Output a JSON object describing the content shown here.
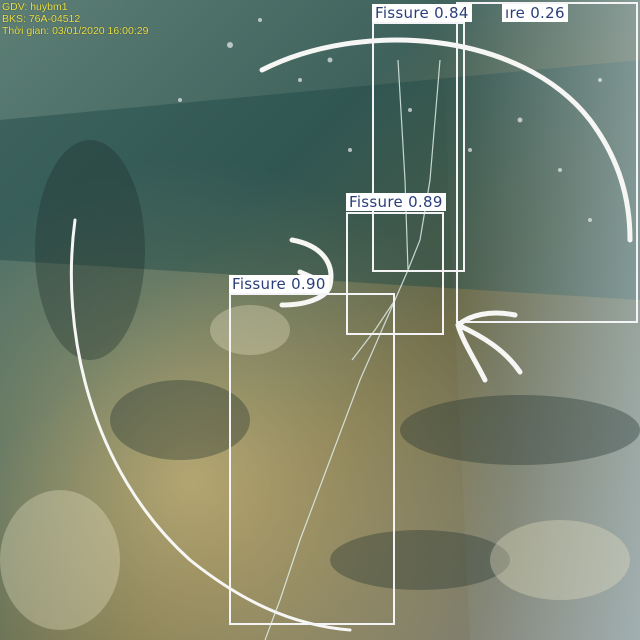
{
  "overlay": {
    "inspector": "GDV: huybm1",
    "plate": "BKS: 76A-04512",
    "timestamp": "Thời gian: 03/01/2020 16:00:29"
  },
  "detections": [
    {
      "label": "Fissure",
      "score": "0.84"
    },
    {
      "label": "Fissure",
      "score": "0.26",
      "visible_label": "ıre 0.26"
    },
    {
      "label": "Fissure",
      "score": "0.89"
    },
    {
      "label": "Fissure",
      "score": "0.90"
    }
  ],
  "colors": {
    "box_outline": "#f4f4f6",
    "label_text": "#2a3f7a",
    "stamp_text": "#e6e04a"
  }
}
